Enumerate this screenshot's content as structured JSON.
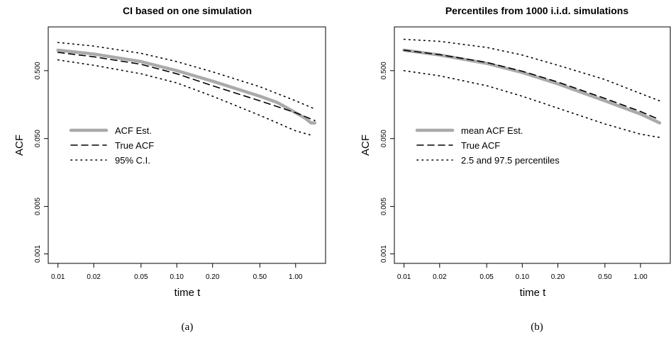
{
  "chart_data": [
    {
      "type": "line",
      "title": "CI based on one simulation",
      "xlabel": "time t",
      "ylabel": "ACF",
      "caption": "(a)",
      "xscale": "log",
      "yscale": "log",
      "xlim": [
        0.01,
        1.5
      ],
      "ylim": [
        0.001,
        1.6
      ],
      "xticks": [
        0.01,
        0.02,
        0.05,
        0.1,
        0.2,
        0.5,
        1.0
      ],
      "xtick_labels": [
        "0.01",
        "0.02",
        "0.05",
        "0.10",
        "0.20",
        "0.50",
        "1.00"
      ],
      "yticks": [
        0.001,
        0.005,
        0.05,
        0.5
      ],
      "ytick_labels": [
        "0.001",
        "0.005",
        "0.050",
        "0.500"
      ],
      "legend_position": "middle-left",
      "series": [
        {
          "name": "ACF Est.",
          "style": "solid-thick",
          "color": "#aaaaaa",
          "x": [
            0.01,
            0.02,
            0.05,
            0.1,
            0.2,
            0.5,
            0.7,
            1.0,
            1.2,
            1.35,
            1.45
          ],
          "y": [
            1.0,
            0.88,
            0.68,
            0.5,
            0.35,
            0.21,
            0.17,
            0.12,
            0.1,
            0.085,
            0.085
          ]
        },
        {
          "name": "True ACF",
          "style": "dashed",
          "color": "#000000",
          "x": [
            0.01,
            0.02,
            0.05,
            0.1,
            0.2,
            0.5,
            1.0,
            1.45
          ],
          "y": [
            0.93,
            0.8,
            0.62,
            0.45,
            0.3,
            0.18,
            0.12,
            0.092
          ]
        },
        {
          "name": "95% C.I.",
          "style": "dotted",
          "color": "#000000",
          "x": [
            0.01,
            0.02,
            0.05,
            0.1,
            0.2,
            0.5,
            1.0,
            1.4
          ],
          "y": [
            1.3,
            1.15,
            0.9,
            0.68,
            0.48,
            0.29,
            0.18,
            0.14
          ]
        },
        {
          "name": "",
          "style": "dotted",
          "color": "#000000",
          "x": [
            0.01,
            0.02,
            0.05,
            0.1,
            0.2,
            0.5,
            1.0,
            1.4
          ],
          "y": [
            0.72,
            0.6,
            0.45,
            0.33,
            0.21,
            0.11,
            0.065,
            0.055
          ]
        }
      ]
    },
    {
      "type": "line",
      "title": "Percentiles from 1000 i.i.d. simulations",
      "xlabel": "time t",
      "ylabel": "ACF",
      "caption": "(b)",
      "xscale": "log",
      "yscale": "log",
      "xlim": [
        0.01,
        1.5
      ],
      "ylim": [
        0.001,
        1.6
      ],
      "xticks": [
        0.01,
        0.02,
        0.05,
        0.1,
        0.2,
        0.5,
        1.0
      ],
      "xtick_labels": [
        "0.01",
        "0.02",
        "0.05",
        "0.10",
        "0.20",
        "0.50",
        "1.00"
      ],
      "yticks": [
        0.001,
        0.005,
        0.05,
        0.5
      ],
      "ytick_labels": [
        "0.001",
        "0.005",
        "0.050",
        "0.500"
      ],
      "legend_position": "middle-left",
      "series": [
        {
          "name": "mean ACF Est.",
          "style": "solid-thick",
          "color": "#aaaaaa",
          "x": [
            0.01,
            0.02,
            0.05,
            0.1,
            0.2,
            0.5,
            1.0,
            1.45
          ],
          "y": [
            1.0,
            0.85,
            0.64,
            0.47,
            0.32,
            0.18,
            0.115,
            0.085
          ]
        },
        {
          "name": "True ACF",
          "style": "dashed",
          "color": "#000000",
          "x": [
            0.01,
            0.02,
            0.05,
            0.1,
            0.2,
            0.5,
            1.0,
            1.45
          ],
          "y": [
            1.0,
            0.86,
            0.66,
            0.49,
            0.34,
            0.195,
            0.125,
            0.095
          ]
        },
        {
          "name": "2.5 and 97.5 percentiles",
          "style": "dotted",
          "color": "#000000",
          "x": [
            0.01,
            0.02,
            0.05,
            0.1,
            0.2,
            0.5,
            1.0,
            1.45
          ],
          "y": [
            1.45,
            1.35,
            1.1,
            0.85,
            0.6,
            0.37,
            0.23,
            0.18
          ]
        },
        {
          "name": "",
          "style": "dotted",
          "color": "#000000",
          "x": [
            0.01,
            0.02,
            0.05,
            0.1,
            0.2,
            0.5,
            1.0,
            1.45
          ],
          "y": [
            0.5,
            0.42,
            0.3,
            0.21,
            0.14,
            0.082,
            0.058,
            0.052
          ]
        }
      ]
    }
  ]
}
